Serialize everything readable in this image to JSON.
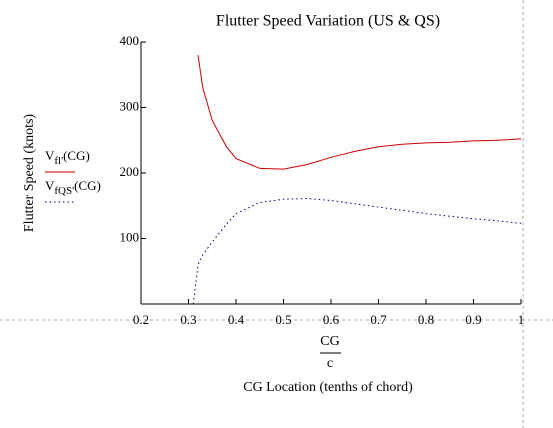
{
  "chart_data": {
    "type": "line",
    "title": "Flutter Speed Variation (US & QS)",
    "ylabel": "Flutter Speed (knots)",
    "x_fraction": {
      "numerator": "CG",
      "denominator": "c"
    },
    "xlabel": "CG Location (tenths of chord)",
    "x": [
      0.31,
      0.32,
      0.33,
      0.35,
      0.38,
      0.4,
      0.45,
      0.5,
      0.55,
      0.6,
      0.65,
      0.7,
      0.75,
      0.8,
      0.85,
      0.9,
      0.95,
      1.0
    ],
    "series": [
      {
        "name": "Vfl'(CG)",
        "color": "#cc0000",
        "dash": false,
        "values": [
          null,
          380,
          330,
          280,
          240,
          222,
          207,
          206,
          213,
          224,
          233,
          240,
          244,
          246,
          247,
          249,
          250,
          252
        ]
      },
      {
        "name": "VfQS'(CG)",
        "color": "#000080",
        "dash": true,
        "values": [
          0,
          60,
          75,
          95,
          122,
          138,
          155,
          160,
          161,
          158,
          153,
          148,
          143,
          138,
          134,
          130,
          127,
          123
        ]
      }
    ],
    "xlim": [
      0.2,
      1
    ],
    "xticks": [
      0.2,
      0.3,
      0.4,
      0.5,
      0.6,
      0.7,
      0.8,
      0.9,
      1
    ],
    "ylim": [
      0,
      400
    ],
    "yticks": [
      100,
      200,
      300,
      400
    ],
    "grid": false
  }
}
